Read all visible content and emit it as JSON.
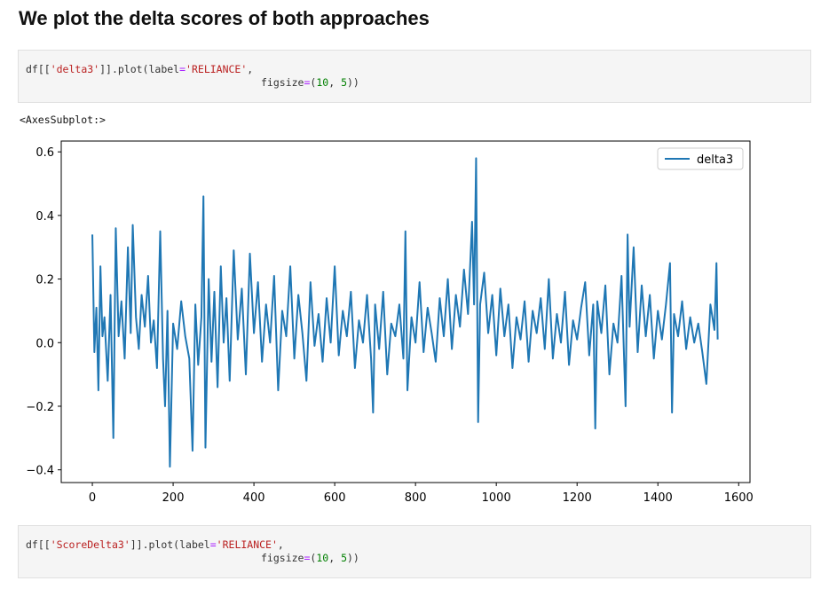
{
  "heading": "We plot the delta scores of both approaches",
  "code_cells": [
    {
      "lines": [
        [
          "df[[",
          "'delta3'",
          "]].plot(label",
          "=",
          "'RELIANCE'",
          ","
        ],
        [
          "figsize",
          "=",
          "(",
          "10",
          ", ",
          "5",
          "))"
        ]
      ]
    },
    {
      "lines": [
        [
          "df[[",
          "'ScoreDelta3'",
          "]].plot(label",
          "=",
          "'RELIANCE'",
          ","
        ],
        [
          "figsize",
          "=",
          "(",
          "10",
          ", ",
          "5",
          "))"
        ]
      ]
    }
  ],
  "output_text": "<AxesSubplot:>",
  "chart_data": {
    "type": "line",
    "x": [
      0,
      5,
      10,
      15,
      20,
      25,
      30,
      38,
      45,
      52,
      58,
      65,
      72,
      80,
      88,
      95,
      100,
      108,
      115,
      122,
      130,
      138,
      145,
      152,
      160,
      168,
      175,
      180,
      186,
      192,
      200,
      210,
      220,
      230,
      240,
      248,
      255,
      262,
      270,
      275,
      280,
      288,
      295,
      302,
      310,
      318,
      325,
      332,
      340,
      350,
      360,
      370,
      380,
      390,
      400,
      410,
      420,
      430,
      440,
      450,
      460,
      470,
      480,
      490,
      500,
      510,
      520,
      530,
      540,
      550,
      560,
      570,
      580,
      590,
      600,
      610,
      620,
      630,
      640,
      650,
      660,
      670,
      680,
      690,
      695,
      700,
      710,
      720,
      730,
      740,
      750,
      760,
      770,
      775,
      780,
      790,
      800,
      810,
      820,
      830,
      840,
      850,
      860,
      870,
      880,
      890,
      900,
      910,
      920,
      930,
      940,
      945,
      950,
      955,
      960,
      970,
      980,
      990,
      1000,
      1010,
      1020,
      1030,
      1040,
      1050,
      1060,
      1070,
      1080,
      1090,
      1100,
      1110,
      1120,
      1130,
      1140,
      1150,
      1160,
      1170,
      1180,
      1190,
      1200,
      1210,
      1220,
      1230,
      1240,
      1245,
      1250,
      1260,
      1270,
      1280,
      1290,
      1300,
      1310,
      1320,
      1325,
      1330,
      1340,
      1350,
      1360,
      1370,
      1380,
      1390,
      1400,
      1410,
      1420,
      1430,
      1435,
      1440,
      1450,
      1460,
      1470,
      1480,
      1490,
      1500,
      1510,
      1520,
      1530,
      1540,
      1545,
      1548
    ],
    "series": [
      {
        "name": "delta3",
        "color": "#1f77b4",
        "values": [
          0.34,
          -0.03,
          0.11,
          -0.15,
          0.24,
          0.02,
          0.08,
          -0.12,
          0.15,
          -0.3,
          0.36,
          0.02,
          0.13,
          -0.05,
          0.3,
          0.03,
          0.37,
          0.08,
          -0.02,
          0.15,
          0.05,
          0.21,
          0.0,
          0.07,
          -0.08,
          0.35,
          -0.05,
          -0.2,
          0.1,
          -0.39,
          0.06,
          -0.02,
          0.13,
          0.02,
          -0.05,
          -0.34,
          0.12,
          -0.07,
          0.08,
          0.46,
          -0.33,
          0.2,
          -0.06,
          0.16,
          -0.14,
          0.24,
          0.0,
          0.14,
          -0.12,
          0.29,
          0.01,
          0.17,
          -0.1,
          0.28,
          0.03,
          0.19,
          -0.06,
          0.12,
          0.0,
          0.21,
          -0.15,
          0.1,
          0.02,
          0.24,
          -0.05,
          0.15,
          0.03,
          -0.12,
          0.19,
          -0.01,
          0.09,
          -0.06,
          0.14,
          0.0,
          0.24,
          -0.04,
          0.1,
          0.02,
          0.16,
          -0.08,
          0.07,
          0.0,
          0.15,
          -0.05,
          -0.22,
          0.12,
          -0.02,
          0.16,
          -0.1,
          0.06,
          0.02,
          0.12,
          -0.05,
          0.35,
          -0.15,
          0.08,
          0.0,
          0.19,
          -0.03,
          0.11,
          0.03,
          -0.06,
          0.14,
          0.02,
          0.2,
          -0.02,
          0.15,
          0.05,
          0.23,
          0.09,
          0.38,
          0.12,
          0.58,
          -0.25,
          0.12,
          0.22,
          0.03,
          0.15,
          -0.04,
          0.17,
          0.02,
          0.12,
          -0.08,
          0.08,
          0.01,
          0.13,
          -0.06,
          0.1,
          0.03,
          0.14,
          -0.02,
          0.2,
          -0.05,
          0.09,
          0.0,
          0.16,
          -0.07,
          0.07,
          0.01,
          0.11,
          0.19,
          -0.04,
          0.12,
          -0.27,
          0.13,
          0.03,
          0.18,
          -0.1,
          0.06,
          0.0,
          0.21,
          -0.2,
          0.34,
          0.05,
          0.3,
          -0.03,
          0.18,
          0.02,
          0.15,
          -0.05,
          0.1,
          0.01,
          0.12,
          0.25,
          -0.22,
          0.09,
          0.02,
          0.13,
          -0.02,
          0.08,
          0.0,
          0.06,
          -0.03,
          -0.13,
          0.12,
          0.04,
          0.25,
          0.01
        ]
      }
    ],
    "xlim": [
      -77,
      1628
    ],
    "ylim": [
      -0.44,
      0.634
    ],
    "xticks": [
      0,
      200,
      400,
      600,
      800,
      1000,
      1200,
      1400,
      1600
    ],
    "yticks": [
      {
        "value": -0.4,
        "label": "−0.4"
      },
      {
        "value": -0.2,
        "label": "−0.2"
      },
      {
        "value": 0,
        "label": "0.0"
      },
      0.2,
      0.4,
      0.6
    ],
    "legend": "upper right"
  }
}
